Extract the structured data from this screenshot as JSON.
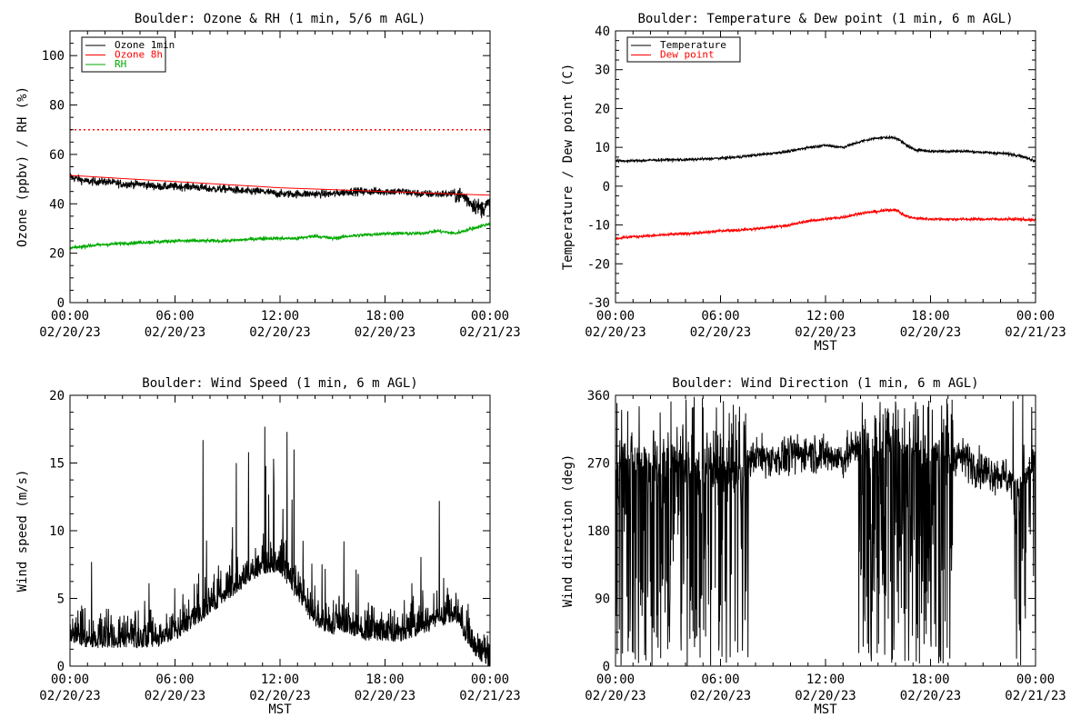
{
  "chart_data": [
    {
      "type": "line",
      "title": "Boulder: Ozone & RH (1 min, 5/6 m AGL)",
      "xlabel": "",
      "ylabel": "Ozone (ppbv) / RH (%)",
      "xlim": [
        0,
        24
      ],
      "ylim": [
        0,
        110
      ],
      "yticks": [
        0,
        20,
        40,
        60,
        80,
        100
      ],
      "xticks": [
        {
          "time": "00:00",
          "date": "02/20/23"
        },
        {
          "time": "06:00",
          "date": "02/20/23"
        },
        {
          "time": "12:00",
          "date": "02/20/23"
        },
        {
          "time": "18:00",
          "date": "02/20/23"
        },
        {
          "time": "00:00",
          "date": "02/21/23"
        }
      ],
      "legend": "top-left",
      "series": [
        {
          "name": "Ozone 1min",
          "color": "#000000",
          "style": "noisy",
          "x": [
            0,
            0.5,
            1,
            2,
            3,
            4,
            5,
            6,
            7,
            8,
            9,
            10,
            11,
            12,
            13,
            14,
            15,
            16,
            17,
            18,
            19,
            20,
            21,
            22,
            22.5,
            23,
            23.5,
            24
          ],
          "values": [
            51,
            50,
            49,
            49,
            48,
            48,
            47,
            47,
            47,
            46,
            46,
            45,
            45,
            44,
            44,
            44,
            44,
            45,
            45,
            45,
            45,
            44,
            44,
            44,
            43,
            40,
            38,
            40
          ],
          "noise": 1.6
        },
        {
          "name": "Ozone 8h",
          "color": "#ff0000",
          "style": "solid",
          "x": [
            0,
            6,
            12,
            18,
            24
          ],
          "values": [
            51.5,
            49,
            46.5,
            45,
            43.5
          ]
        },
        {
          "name": "RH",
          "color": "#00aa00",
          "style": "noisy",
          "x": [
            0,
            1,
            3,
            6,
            9,
            11,
            12,
            13,
            14,
            15,
            16,
            18,
            20,
            21,
            22,
            23,
            24
          ],
          "values": [
            22,
            23,
            24,
            25,
            25,
            26,
            26,
            26,
            27,
            26,
            27,
            28,
            28,
            29,
            28,
            30,
            32
          ],
          "noise": 0.7
        },
        {
          "name": "",
          "color": "#ff0000",
          "style": "dotted",
          "x": [
            0,
            24
          ],
          "values": [
            70,
            70
          ]
        }
      ]
    },
    {
      "type": "line",
      "title": "Boulder: Temperature & Dew point (1 min, 6 m AGL)",
      "xlabel": "MST",
      "ylabel": "Temperature / Dew point (C)",
      "xlim": [
        0,
        24
      ],
      "ylim": [
        -30,
        40
      ],
      "yticks": [
        -30,
        -20,
        -10,
        0,
        10,
        20,
        30,
        40
      ],
      "xticks": [
        {
          "time": "00:00",
          "date": "02/20/23"
        },
        {
          "time": "06:00",
          "date": "02/20/23"
        },
        {
          "time": "12:00",
          "date": "02/20/23"
        },
        {
          "time": "18:00",
          "date": "02/20/23"
        },
        {
          "time": "00:00",
          "date": "02/21/23"
        }
      ],
      "legend": "top-left",
      "series": [
        {
          "name": "Temperature",
          "color": "#000000",
          "style": "noisy",
          "x": [
            0,
            1,
            2,
            3,
            4,
            5,
            6,
            7,
            8,
            9,
            10,
            11,
            12,
            13,
            14,
            15,
            16,
            16.5,
            17,
            18,
            19,
            20,
            21,
            22,
            23,
            24
          ],
          "values": [
            6.5,
            6.5,
            6.7,
            6.8,
            6.8,
            7,
            7.2,
            7.5,
            8,
            8.5,
            9,
            10,
            10.5,
            10,
            11.5,
            12.5,
            12.5,
            11,
            9.5,
            9,
            9,
            9,
            8.7,
            8.5,
            8,
            6.5
          ],
          "noise": 0.35
        },
        {
          "name": "Dew point",
          "color": "#ff0000",
          "style": "noisy",
          "x": [
            0,
            1,
            2,
            3,
            4,
            5,
            6,
            7,
            8,
            9,
            10,
            11,
            12,
            13,
            14,
            15,
            16,
            16.5,
            17,
            18,
            19,
            20,
            21,
            22,
            23,
            24
          ],
          "values": [
            -13.5,
            -13,
            -12.8,
            -12.5,
            -12.2,
            -12,
            -11.5,
            -11.3,
            -11,
            -10.5,
            -10,
            -9,
            -8.5,
            -8,
            -7,
            -6.5,
            -6,
            -7.5,
            -8.2,
            -8.5,
            -8.5,
            -8.5,
            -8.5,
            -8.5,
            -8.5,
            -8.8
          ],
          "noise": 0.35
        }
      ]
    },
    {
      "type": "line",
      "title": "Boulder: Wind Speed (1 min, 6 m AGL)",
      "xlabel": "MST",
      "ylabel": "Wind speed (m/s)",
      "xlim": [
        0,
        24
      ],
      "ylim": [
        0,
        20
      ],
      "yticks": [
        0,
        5,
        10,
        15,
        20
      ],
      "xticks": [
        {
          "time": "00:00",
          "date": "02/20/23"
        },
        {
          "time": "06:00",
          "date": "02/20/23"
        },
        {
          "time": "12:00",
          "date": "02/20/23"
        },
        {
          "time": "18:00",
          "date": "02/20/23"
        },
        {
          "time": "00:00",
          "date": "02/21/23"
        }
      ],
      "series": [
        {
          "name": "",
          "color": "#000000",
          "style": "spiky",
          "x": [
            0,
            1,
            2,
            3,
            4,
            5,
            6,
            7,
            8,
            9,
            10,
            11,
            12,
            13,
            14,
            15,
            16,
            17,
            18,
            19,
            20,
            21,
            22,
            23,
            24
          ],
          "values": [
            3,
            2.5,
            2.5,
            2.5,
            2.5,
            2.5,
            3,
            4,
            5,
            6,
            7,
            8,
            8,
            6,
            4,
            3.5,
            3.5,
            3,
            3,
            3,
            3.5,
            4,
            4.5,
            2,
            1
          ],
          "noise": 2.6,
          "peaks": [
            {
              "x": 7.6,
              "y": 16.7
            },
            {
              "x": 9.5,
              "y": 15
            },
            {
              "x": 10.2,
              "y": 15.8
            },
            {
              "x": 12.4,
              "y": 17.3
            },
            {
              "x": 12.8,
              "y": 16
            },
            {
              "x": 21.1,
              "y": 12.2
            }
          ]
        }
      ]
    },
    {
      "type": "line",
      "title": "Boulder: Wind Direction (1 min, 6 m AGL)",
      "xlabel": "MST",
      "ylabel": "Wind direction (deg)",
      "xlim": [
        0,
        24
      ],
      "ylim": [
        0,
        360
      ],
      "yticks": [
        0,
        90,
        180,
        270,
        360
      ],
      "xticks": [
        {
          "time": "00:00",
          "date": "02/20/23"
        },
        {
          "time": "06:00",
          "date": "02/20/23"
        },
        {
          "time": "12:00",
          "date": "02/20/23"
        },
        {
          "time": "18:00",
          "date": "02/20/23"
        },
        {
          "time": "00:00",
          "date": "02/21/23"
        }
      ],
      "series": [
        {
          "name": "",
          "color": "#000000",
          "style": "direction",
          "x": [
            0,
            1,
            2,
            3,
            4,
            5,
            6,
            7,
            7.5,
            8,
            9,
            10,
            11,
            12,
            13,
            13.5,
            14,
            15,
            16,
            17,
            18,
            19,
            20,
            21,
            22,
            23,
            24
          ],
          "values": [
            260,
            280,
            270,
            280,
            270,
            260,
            260,
            250,
            270,
            280,
            275,
            280,
            285,
            280,
            275,
            285,
            300,
            300,
            295,
            290,
            290,
            285,
            275,
            260,
            255,
            240,
            270
          ],
          "noise": 25,
          "wild": [
            {
              "from": 0,
              "to": 7.6,
              "rate": 0.55
            },
            {
              "from": 13.9,
              "to": 19.3,
              "rate": 0.65
            },
            {
              "from": 22.7,
              "to": 24,
              "rate": 0.35
            }
          ]
        }
      ]
    }
  ]
}
